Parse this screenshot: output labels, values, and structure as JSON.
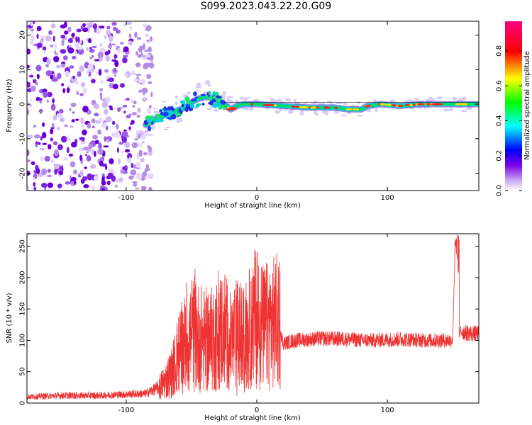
{
  "title": "S099.2023.043.22.20.G09",
  "chart_data": [
    {
      "type": "heatmap",
      "xlabel": "Height of straight line (km)",
      "ylabel": "Frequency (Hz)",
      "xlim": [
        -176,
        170
      ],
      "ylim": [
        -25,
        24
      ],
      "x_ticks": [
        -100,
        0,
        100
      ],
      "y_ticks": [
        -20,
        -10,
        0,
        10,
        20
      ],
      "colorbar": {
        "label": "Normalized spectral amplitude",
        "range": [
          0.0,
          0.97
        ],
        "ticks": [
          0.0,
          0.2,
          0.4,
          0.6,
          0.8
        ],
        "tick_labels": [
          "0.0",
          "0.2",
          "0.4",
          "0.6",
          "0.8"
        ],
        "colormap": [
          "#ffffff",
          "#7a00e6",
          "#0000ff",
          "#00ffff",
          "#00ff00",
          "#ffff00",
          "#ff0000",
          "#ff0080"
        ]
      },
      "noise_region": {
        "x": [
          -176,
          -85
        ],
        "y": [
          -25,
          24
        ]
      },
      "ridge": {
        "x": [
          -85,
          -78,
          -70,
          -62,
          -55,
          -48,
          -42,
          -36,
          -30,
          -25,
          -20,
          -15,
          -10,
          0,
          20,
          40,
          60,
          70,
          80,
          85,
          95,
          110,
          125,
          140,
          155,
          170
        ],
        "y": [
          -6,
          -4.5,
          -3,
          -2,
          -1,
          1,
          2,
          2,
          1,
          0,
          -1.5,
          -0.5,
          0,
          0,
          -0.5,
          -1,
          -1,
          -1.5,
          -1.5,
          -0.5,
          0,
          -0.5,
          0,
          0,
          0,
          0
        ]
      }
    },
    {
      "type": "line",
      "xlabel": "Height of straight line (km)",
      "ylabel": "SNR (10 * v/v)",
      "xlim": [
        -176,
        170
      ],
      "ylim": [
        0,
        270
      ],
      "x_ticks": [
        -100,
        0,
        100
      ],
      "y_ticks": [
        0,
        50,
        100,
        150,
        200,
        250
      ],
      "color": "#ee3333",
      "series": [
        {
          "x": [
            -176,
            -150,
            -120,
            -100,
            -85,
            -75,
            -70,
            -65,
            -60,
            -55,
            -50,
            -45,
            -40,
            -35,
            -30,
            -25,
            -20,
            -15,
            -10,
            -5,
            0,
            5,
            10,
            15,
            17,
            20,
            30,
            50,
            70,
            80,
            90,
            110,
            130,
            150,
            152,
            154,
            156,
            160,
            170
          ],
          "y": [
            10,
            12,
            12,
            14,
            15,
            25,
            35,
            50,
            80,
            95,
            110,
            105,
            100,
            100,
            110,
            120,
            95,
            110,
            100,
            120,
            140,
            120,
            125,
            130,
            130,
            95,
            100,
            103,
            102,
            100,
            100,
            102,
            100,
            100,
            265,
            95,
            115,
            112,
            110
          ]
        }
      ]
    }
  ]
}
